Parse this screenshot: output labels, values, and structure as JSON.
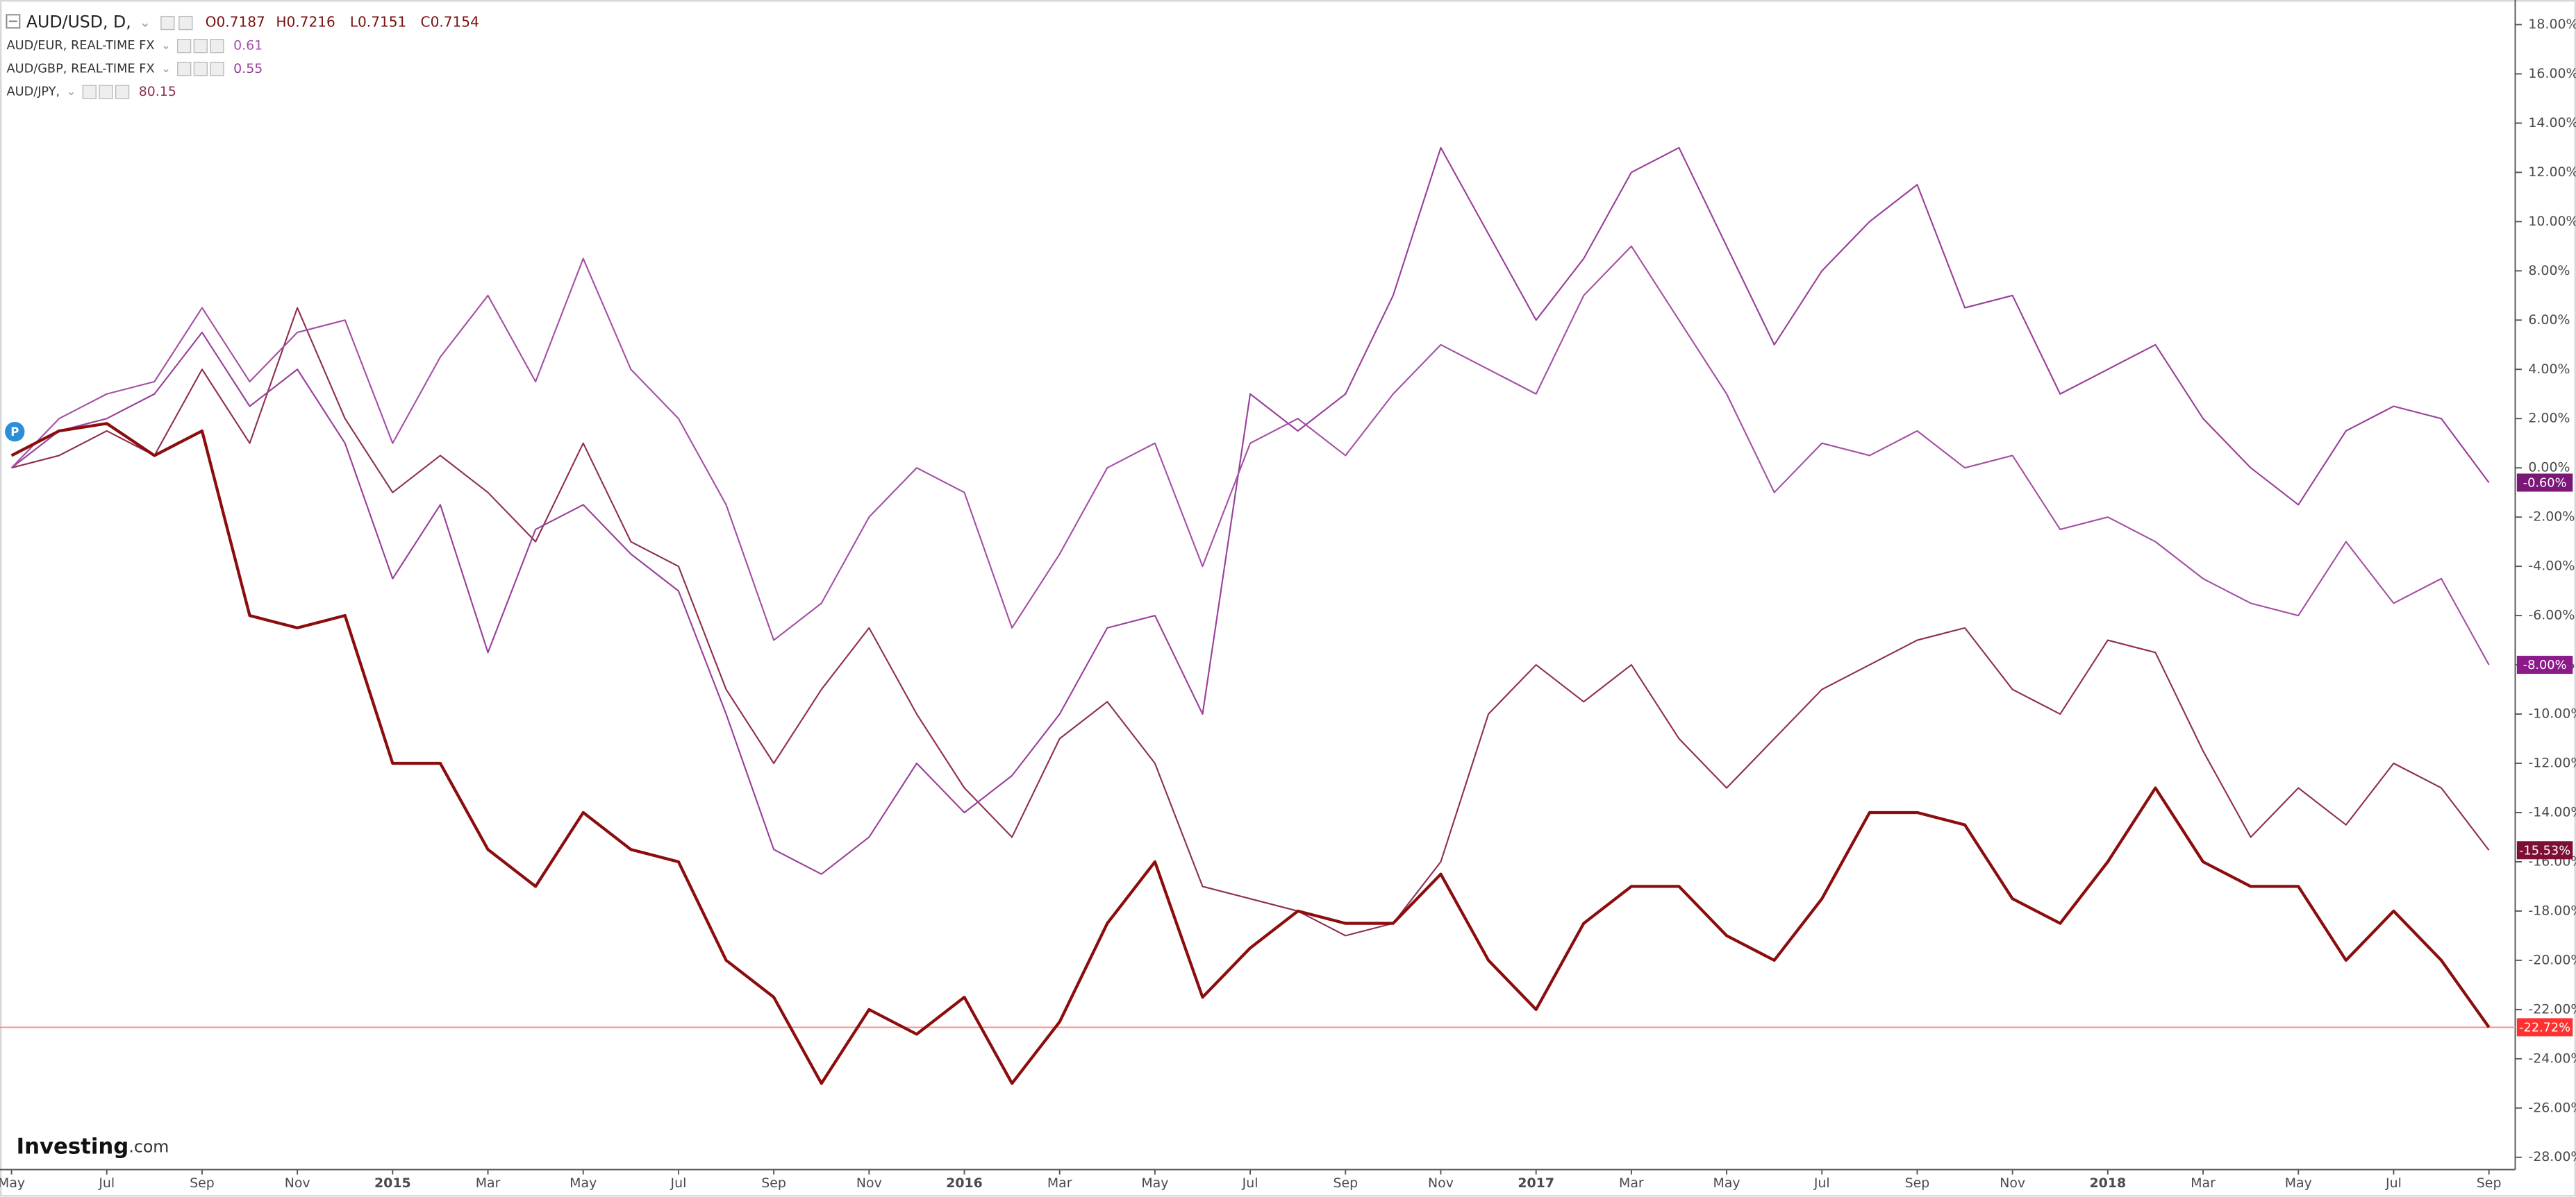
{
  "chart_data": {
    "type": "line",
    "categories": [
      "May",
      null,
      "Jul",
      null,
      "Sep",
      null,
      "Nov",
      null,
      "2015",
      null,
      "Mar",
      null,
      "May",
      null,
      "Jul",
      null,
      "Sep",
      null,
      "Nov",
      null,
      "2016",
      null,
      "Mar",
      null,
      "May",
      null,
      "Jul",
      null,
      "Sep",
      null,
      "Nov",
      null,
      "2017",
      null,
      "Mar",
      null,
      "May",
      null,
      "Jul",
      null,
      "Sep",
      null,
      "Nov",
      null,
      "2018",
      null,
      "Mar",
      null,
      "May",
      null,
      "Jul",
      null,
      "Sep"
    ],
    "ylim": [
      -28.5,
      19
    ],
    "yticks": [
      {
        "value": 18,
        "label": "18.00%"
      },
      {
        "value": 16,
        "label": "16.00%"
      },
      {
        "value": 14,
        "label": "14.00%"
      },
      {
        "value": 12,
        "label": "12.00%"
      },
      {
        "value": 10,
        "label": "10.00%"
      },
      {
        "value": 8,
        "label": "8.00%"
      },
      {
        "value": 6,
        "label": "6.00%"
      },
      {
        "value": 4,
        "label": "4.00%"
      },
      {
        "value": 2,
        "label": "2.00%"
      },
      {
        "value": 0,
        "label": "0.00%"
      },
      {
        "value": -2,
        "label": "-2.00%"
      },
      {
        "value": -4,
        "label": "-4.00%"
      },
      {
        "value": -6,
        "label": "-6.00%"
      },
      {
        "value": -8,
        "label": "-8.00%"
      },
      {
        "value": -10,
        "label": "-10.00%"
      },
      {
        "value": -12,
        "label": "-12.00%"
      },
      {
        "value": -14,
        "label": "-14.00%"
      },
      {
        "value": -16,
        "label": "-16.00%"
      },
      {
        "value": -18,
        "label": "-18.00%"
      },
      {
        "value": -20,
        "label": "-20.00%"
      },
      {
        "value": -22,
        "label": "-22.00%"
      },
      {
        "value": -24,
        "label": "-24.00%"
      },
      {
        "value": -26,
        "label": "-26.00%"
      },
      {
        "value": -28,
        "label": "-28.00%"
      }
    ],
    "legend": {
      "main": {
        "name": "AUD/USD, D,",
        "ohlc": [
          "O0.7187",
          "H0.7216",
          "L0.7151",
          "C0.7154"
        ]
      },
      "others": [
        {
          "name": "AUD/EUR, REAL-TIME FX",
          "value": "0.61"
        },
        {
          "name": "AUD/GBP, REAL-TIME FX",
          "value": "0.55"
        },
        {
          "name": "AUD/JPY,",
          "value": "80.15"
        }
      ]
    },
    "price_line_color": "#ff8a8a",
    "logo": {
      "brand": "Investing",
      "suffix": ".com"
    },
    "marker": "P",
    "series": [
      {
        "name": "AUD/USD",
        "color": "#8b0d0d",
        "label_color": "#ff3030",
        "end_label": "-22.72%",
        "values": [
          0.5,
          1.5,
          1.8,
          0.5,
          1.5,
          -6,
          -6.5,
          -6,
          -12,
          -12,
          -15.5,
          -17,
          -14,
          -15.5,
          -16,
          -20,
          -21.5,
          -25,
          -22,
          -23,
          -21.5,
          -25,
          -22.5,
          -18.5,
          -16,
          -21.5,
          -19.5,
          -18,
          -18.5,
          -18.5,
          -16.5,
          -20,
          -22,
          -18.5,
          -17,
          -17,
          -19,
          -20,
          -17.5,
          -14,
          -14,
          -14.5,
          -17.5,
          -18.5,
          -16,
          -13,
          -16,
          -17,
          -17,
          -20,
          -18,
          -20,
          -22.72
        ]
      },
      {
        "name": "AUD/EUR",
        "color": "#a550a5",
        "label_color": "#8b1a8b",
        "end_label": "-8.00%",
        "values": [
          0,
          2,
          3,
          3.5,
          6.5,
          3.5,
          5.5,
          6,
          1,
          4.5,
          7,
          3.5,
          8.5,
          4,
          2,
          -1.5,
          -7,
          -5.5,
          -2,
          0,
          -1,
          -6.5,
          -3.5,
          0,
          1,
          -4,
          1,
          2,
          0.5,
          3,
          5,
          4,
          3,
          7,
          9,
          6,
          3,
          -1,
          1,
          0.5,
          1.5,
          0,
          0.5,
          -2.5,
          -2,
          -3,
          -4.5,
          -5.5,
          -6,
          -3,
          -5.5,
          -4.5,
          -8
        ]
      },
      {
        "name": "AUD/GBP",
        "color": "#9a3f9a",
        "label_color": "#7b1777",
        "end_label": "-0.60%",
        "values": [
          0,
          1.5,
          2,
          3,
          5.5,
          2.5,
          4,
          1,
          -4.5,
          -1.5,
          -7.5,
          -2.5,
          -1.5,
          -3.5,
          -5,
          -10,
          -15.5,
          -16.5,
          -15,
          -12,
          -14,
          -12.5,
          -10,
          -6.5,
          -6,
          -10,
          3,
          1.5,
          3,
          7,
          13,
          9.5,
          6,
          8.5,
          12,
          13,
          9,
          5,
          8,
          10,
          11.5,
          6.5,
          7,
          3,
          4,
          5,
          2,
          0,
          -1.5,
          1.5,
          2.5,
          2,
          -0.6
        ]
      },
      {
        "name": "AUD/JPY",
        "color": "#8e3050",
        "label_color": "#7d0f33",
        "end_label": "-15.53%",
        "values": [
          0,
          0.5,
          1.5,
          0.5,
          4,
          1,
          6.5,
          2,
          -1,
          0.5,
          -1,
          -3,
          1,
          -3,
          -4,
          -9,
          -12,
          -9,
          -6.5,
          -10,
          -13,
          -15,
          -11,
          -9.5,
          -12,
          -17,
          -17.5,
          -18,
          -19,
          -18.5,
          -16,
          -10,
          -8,
          -9.5,
          -8,
          -11,
          -13,
          -11,
          -9,
          -8,
          -7,
          -6.5,
          -9,
          -10,
          -7,
          -7.5,
          -11.5,
          -15,
          -13,
          -14.5,
          -12,
          -13,
          -15.53
        ]
      }
    ]
  }
}
